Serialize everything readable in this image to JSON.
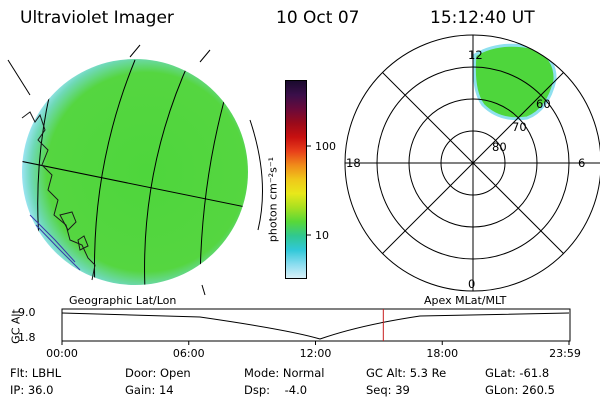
{
  "header": {
    "instrument": "Ultraviolet Imager",
    "date": "10 Oct 07",
    "time": "15:12:40 UT"
  },
  "colorbar": {
    "unit_label": "photon cm⁻²s⁻¹",
    "tick_labels": [
      "100",
      "10"
    ],
    "colors": [
      "#1a0a2e",
      "#3b0f4a",
      "#6a0a3a",
      "#9a0a1a",
      "#c81010",
      "#e8401a",
      "#f08c1a",
      "#f0c81a",
      "#e8e81a",
      "#a8e020",
      "#58d838",
      "#30c890",
      "#30c8d8",
      "#88dcef",
      "#d8f0f8"
    ]
  },
  "left_map": {
    "label": "Geographic Lat/Lon",
    "fill_color": "#4ed63c",
    "edge_color": "#7ddcf0"
  },
  "right_polar": {
    "label": "Apex MLat/MLT",
    "mlt_labels": {
      "top": "12",
      "left": "18",
      "right": "6",
      "bottom": "0"
    },
    "mlat_labels": [
      "60",
      "70",
      "80"
    ]
  },
  "altitude_plot": {
    "ylabel": "GC Alt",
    "y_ticks": [
      "9.0",
      "1.8"
    ],
    "x_ticks": [
      "00:00",
      "06:00",
      "12:00",
      "18:00",
      "23:59"
    ],
    "x_tick_hours": [
      0,
      6,
      12,
      18,
      24
    ],
    "current_hour": 15.21,
    "marker_color": "#c81e1e"
  },
  "info": {
    "filter": "Flt: LBHL",
    "ip": "IP: 36.0",
    "door": "Door: Open",
    "gain": "Gain: 14",
    "mode": "Mode: Normal",
    "dsp": "Dsp:    -4.0",
    "gc_alt": "GC Alt: 5.3 Re",
    "seq": "Seq: 39",
    "glat": "GLat: -61.8",
    "glon": "GLon: 260.5"
  }
}
